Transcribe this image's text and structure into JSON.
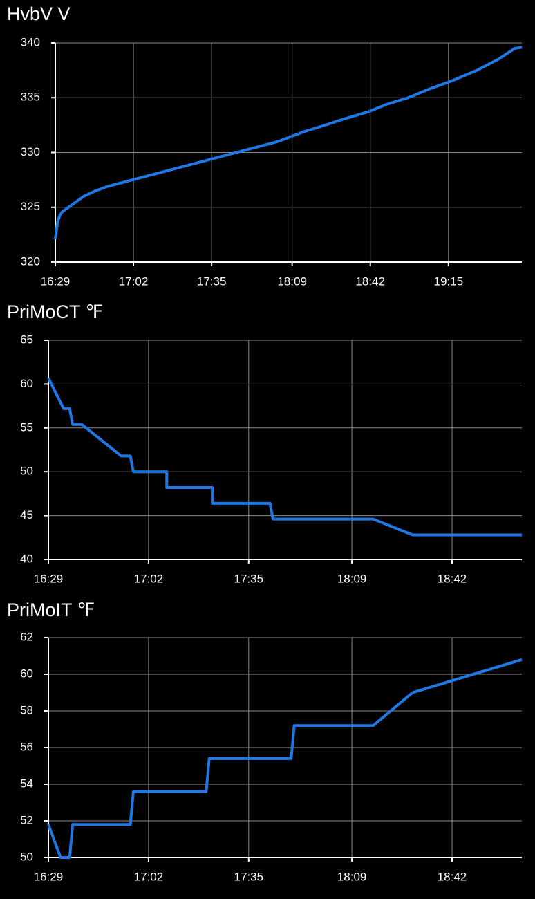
{
  "chart_data": [
    {
      "type": "line",
      "title": "HvbV  V",
      "color": "#1f78e6",
      "grid": true,
      "x": [
        "16:29",
        "16:30",
        "16:31",
        "16:32",
        "16:41",
        "16:46",
        "16:51",
        "18:03",
        "18:08",
        "18:14",
        "18:23",
        "18:30",
        "18:41",
        "18:49",
        "18:58",
        "19:07",
        "19:16",
        "19:27",
        "19:36",
        "19:43",
        "19:46"
      ],
      "values": [
        322.1,
        323.7,
        324.3,
        324.6,
        326,
        326.5,
        326.9,
        331,
        331.4,
        331.9,
        332.5,
        333,
        333.7,
        334.4,
        335,
        335.8,
        336.5,
        337.5,
        338.5,
        339.5,
        339.6
      ],
      "xlim": [
        "16:29",
        "19:46"
      ],
      "xticks": [
        "16:29",
        "17:02",
        "17:35",
        "18:09",
        "18:42",
        "19:15"
      ],
      "ylim": [
        320,
        340
      ],
      "yticks": [
        320,
        325,
        330,
        335,
        340
      ]
    },
    {
      "type": "line",
      "title": "PriMoCT  ℉",
      "color": "#1f78e6",
      "grid": true,
      "x": [
        "16:29",
        "16:34",
        "16:36",
        "16:37",
        "16:40",
        "16:53",
        "16:56",
        "16:57",
        "17:08",
        "17:08",
        "17:23",
        "17:23",
        "17:42",
        "17:43",
        "18:16",
        "18:29",
        "19:05"
      ],
      "values": [
        60.7,
        57.2,
        57.2,
        55.4,
        55.4,
        51.8,
        51.8,
        50,
        50,
        48.2,
        48.2,
        46.4,
        46.4,
        44.6,
        44.6,
        42.8,
        42.8
      ],
      "xlim": [
        "16:29",
        "19:05"
      ],
      "xticks": [
        "16:29",
        "17:02",
        "17:35",
        "18:09",
        "18:42"
      ],
      "ylim": [
        40,
        65
      ],
      "yticks": [
        40,
        45,
        50,
        55,
        60,
        65
      ]
    },
    {
      "type": "line",
      "title": "PriMoIT  ℉",
      "color": "#1f78e6",
      "grid": true,
      "x": [
        "16:29",
        "16:33",
        "16:36",
        "16:37",
        "16:56",
        "16:57",
        "17:21",
        "17:22",
        "17:49",
        "17:50",
        "18:16",
        "18:29",
        "19:05"
      ],
      "values": [
        51.8,
        50,
        50,
        51.8,
        51.8,
        53.6,
        53.6,
        55.4,
        55.4,
        57.2,
        57.2,
        59,
        60.8
      ],
      "xlim": [
        "16:29",
        "19:05"
      ],
      "xticks": [
        "16:29",
        "17:02",
        "17:35",
        "18:09",
        "18:42"
      ],
      "ylim": [
        50,
        62
      ],
      "yticks": [
        50,
        52,
        54,
        56,
        58,
        60,
        62
      ]
    }
  ]
}
